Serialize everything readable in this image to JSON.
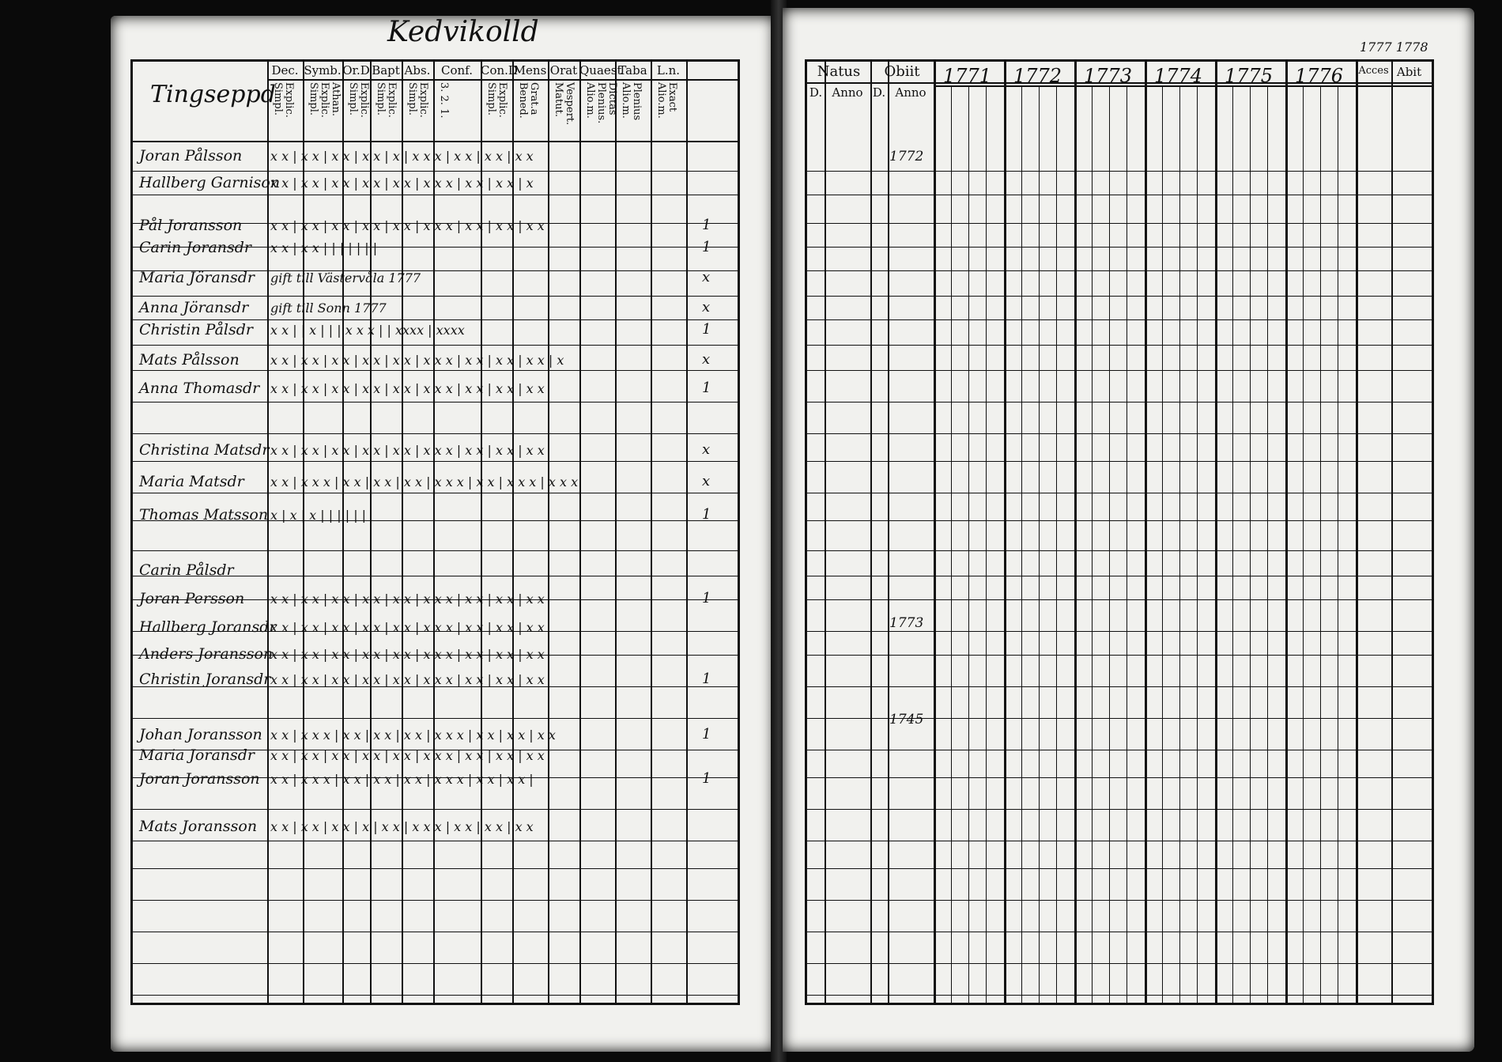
{
  "caption": "Kedvikolld",
  "top_right": "1777 1778",
  "left": {
    "title": "Tingseppd",
    "columns": [
      {
        "head": "Dec.",
        "sub": "Explic. Simpl."
      },
      {
        "head": "Symb.",
        "sub": "Athan. Explic. Simpl."
      },
      {
        "head": "Or.D",
        "sub": "Explic. Simpl."
      },
      {
        "head": "Bapt",
        "sub": "Explic. Simpl."
      },
      {
        "head": "Abs.",
        "sub": "Explic. Simpl."
      },
      {
        "head": "Conf.",
        "sub": "3. 2. 1."
      },
      {
        "head": "Con.D",
        "sub": "Explic. Simpl."
      },
      {
        "head": "Mens",
        "sub": "Grat.a Bened."
      },
      {
        "head": "Orat",
        "sub": "Vespert. Matut."
      },
      {
        "head": "Quaest",
        "sub": "Dictas Plenius. Alio.m."
      },
      {
        "head": "Taba",
        "sub": "Plenius Alio.m."
      },
      {
        "head": "L.n.",
        "sub": "Exact Alio.m."
      }
    ],
    "rows": [
      {
        "name": "Joran Pålsson",
        "marks": "x x | x x | x x | x x | x | x x x | x x | x x | x x",
        "ln": ""
      },
      {
        "name": "Hallberg Garnison",
        "marks": "x x | x x | x x | x x | x x | x x x | x x | x x | x",
        "ln": ""
      },
      {
        "name": "Pål Joransson",
        "marks": "x x | x x | x x | x x | x x | x x x | x x | x x | x x",
        "ln": "1"
      },
      {
        "name": "Carin Joransdr",
        "marks": "x x | x x | | | | | | |",
        "ln": "1"
      },
      {
        "name": "Maria Jöransdr",
        "marks": "gift till Västervåla 1777",
        "ln": "x"
      },
      {
        "name": "Anna Jöransdr",
        "marks": "gift till Sonn 1777",
        "ln": "x"
      },
      {
        "name": "Christin Pålsdr",
        "marks": "x x | | x | | | x x x | | xxxx | xxxx",
        "ln": "1"
      },
      {
        "name": "Mats Pålsson",
        "marks": "x x | x x | x x | x x | x x | x x x | x x | x x | x x | x",
        "ln": "x"
      },
      {
        "name": "Anna Thomasdr",
        "marks": "x x | x x | x x | x x | x x | x x x | x x | x x | x x",
        "ln": "1"
      },
      {
        "name": "Christina Matsdr",
        "marks": "x x | x x | x x | x x | x x | x x x | x x | x x | x x",
        "ln": "x"
      },
      {
        "name": "Maria Matsdr",
        "marks": "x x | x x x | x x | x x | x x | x x x | x x | x x x | x x x",
        "ln": "x"
      },
      {
        "name": "Thomas Matsson",
        "marks": "x | x | x | | | | | |",
        "ln": "1"
      },
      {
        "name": "Carin Pålsdr",
        "marks": "",
        "ln": ""
      },
      {
        "name": "Joran Persson",
        "marks": "x x | x x | x x | x x | x x | x x x | x x | x x | x x",
        "ln": "1"
      },
      {
        "name": "Hallberg Joransdr",
        "marks": "x x | x x | x x | x x | x x | x x x | x x | x x | x x",
        "ln": ""
      },
      {
        "name": "Anders Joransson",
        "marks": "x x | x x | x x | x x | x x | x x x | x x | x x | x x",
        "ln": ""
      },
      {
        "name": "Christin Joransdr",
        "marks": "x x | x x | x x | x x | x x | x x x | x x | x x | x x",
        "ln": "1"
      },
      {
        "name": "Johan Joransson",
        "marks": "x x | x x x | x x | x x | x x | x x x | x x | x x | x x",
        "ln": "1"
      },
      {
        "name": "Maria Joransdr",
        "marks": "x x | x x | x x | x x | x x | x x x | x x | x x | x x",
        "ln": ""
      },
      {
        "name": "Joran Joransson",
        "marks": "x x | x x x | x x | x x | x x | x x x | x x | x x | ",
        "ln": "1"
      },
      {
        "name": "Mats Joransson",
        "marks": "x x | x x | x x | x | x x | x x x | x x | x x | x x",
        "ln": ""
      }
    ]
  },
  "right": {
    "head_natus": "Natus",
    "head_obiit": "Obiit",
    "sub_d": "D.",
    "sub_anno": "Anno",
    "years": [
      "1771",
      "1772",
      "1773",
      "1774",
      "1775",
      "1776"
    ],
    "head_acces": "Acces",
    "head_abiit": "Abit",
    "annos": [
      {
        "label": "1772"
      },
      {
        "label": "1773"
      },
      {
        "label": "1745"
      }
    ]
  }
}
